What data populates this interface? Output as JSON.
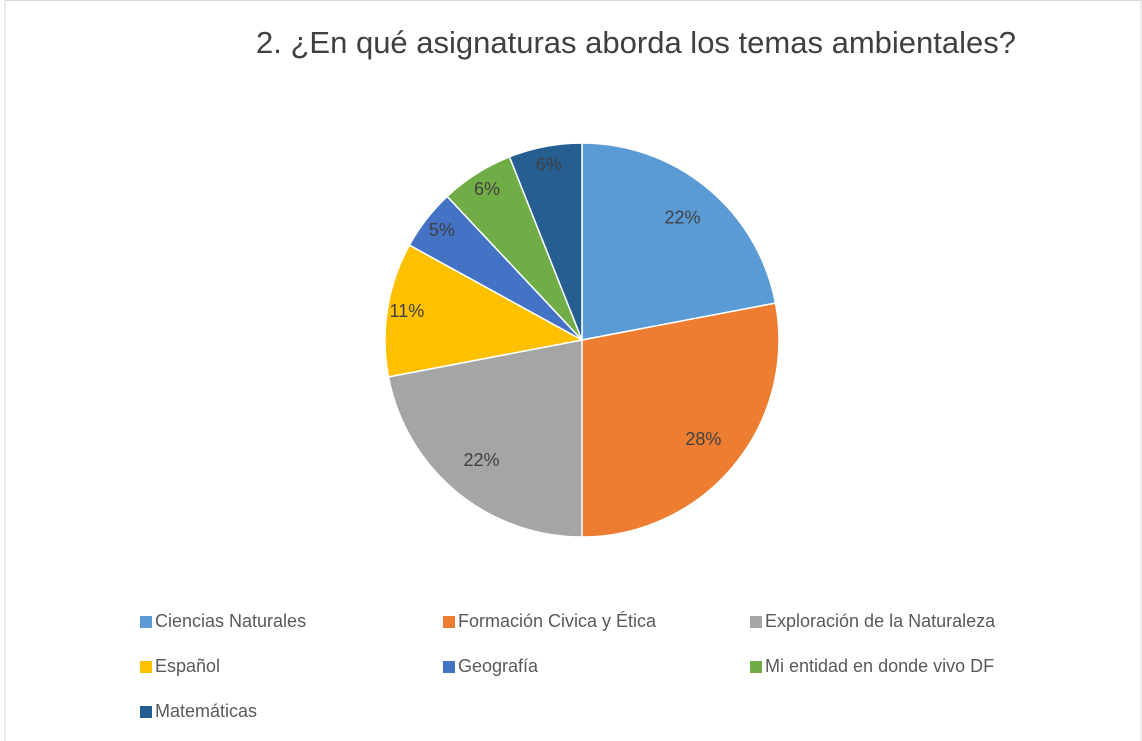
{
  "chart_data": {
    "type": "pie",
    "title": "2. ¿En qué asignaturas aborda los temas ambientales?",
    "categories": [
      "Ciencias Naturales",
      "Formación Civica y Ética",
      "Exploración de la Naturaleza",
      "Español",
      "Geografía",
      "Mi entidad en donde vivo DF",
      "Matemáticas"
    ],
    "values": [
      22,
      28,
      22,
      11,
      5,
      6,
      6
    ],
    "value_labels": [
      "22%",
      "28%",
      "22%",
      "11%",
      "5%",
      "6%",
      "6%"
    ],
    "colors": [
      "#5b9bd5",
      "#ed7d31",
      "#a5a5a5",
      "#ffc000",
      "#4472c4",
      "#70ad47",
      "#255e91"
    ],
    "legend": "bottom"
  }
}
